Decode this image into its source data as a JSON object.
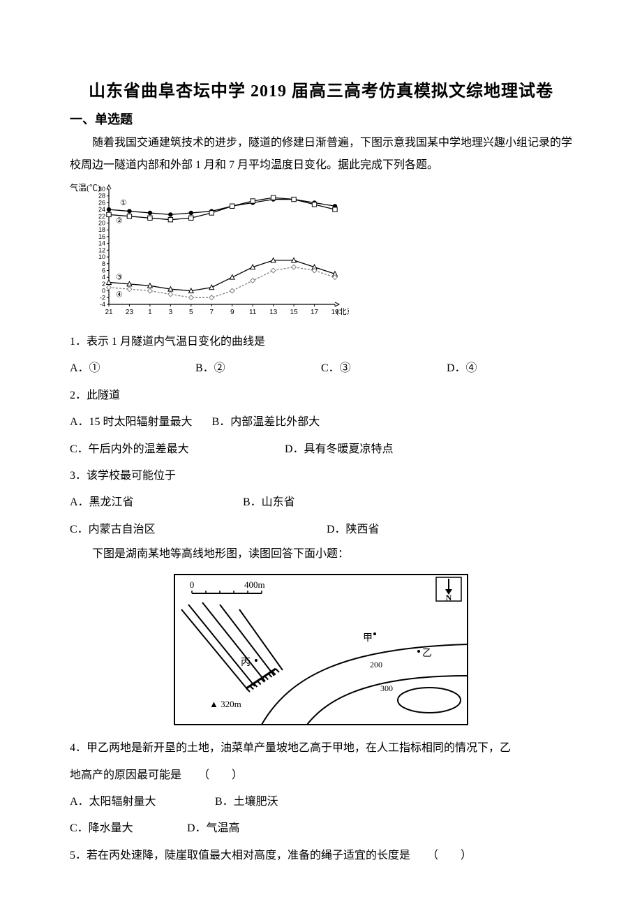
{
  "title": "山东省曲阜杏坛中学 2019 届高三高考仿真模拟文综地理试卷",
  "section1": "一、单选题",
  "intro1": "随着我国交通建筑技术的进步，隧道的修建日渐普遍，下图示意我国某中学地理兴趣小组记录的学校周边一隧道内部和外部 1 月和 7 月平均温度日变化。据此完成下列各题。",
  "chart1": {
    "type": "line",
    "y_label": "气温(℃)",
    "x_label": "(北京时间)",
    "x_ticks": [
      "21",
      "23",
      "1",
      "3",
      "5",
      "7",
      "9",
      "11",
      "13",
      "15",
      "17",
      "19"
    ],
    "y_ticks": [
      -4,
      -2,
      0,
      2,
      4,
      6,
      8,
      10,
      12,
      14,
      16,
      18,
      20,
      22,
      24,
      26,
      28,
      30
    ],
    "ylim": [
      -4,
      30
    ],
    "series_labels": [
      "①",
      "②",
      "③",
      "④"
    ],
    "series": {
      "s1": {
        "label": "①",
        "marker": "circle-filled",
        "color": "#000000",
        "values": [
          24,
          23.5,
          23,
          22.5,
          23,
          23.5,
          25,
          26,
          27,
          27,
          26,
          25
        ]
      },
      "s2": {
        "label": "②",
        "marker": "square-open",
        "color": "#000000",
        "values": [
          22.5,
          22,
          21.5,
          21,
          21.5,
          23,
          25,
          26.5,
          27.5,
          27,
          25.5,
          24
        ]
      },
      "s3": {
        "label": "③",
        "marker": "triangle-open",
        "color": "#000000",
        "values": [
          2.5,
          2,
          1.5,
          0.5,
          0,
          1,
          4,
          7,
          9,
          9,
          7,
          5
        ]
      },
      "s4": {
        "label": "④",
        "marker": "diamond-open",
        "color": "#808080",
        "values": [
          1,
          0.5,
          0,
          -1,
          -2,
          -2,
          0,
          3,
          6,
          7,
          6,
          4
        ]
      }
    },
    "line_width": 1.3,
    "axis_color": "#000000",
    "grid": false,
    "background_color": "#ffffff",
    "label_fontsize": 12
  },
  "q1": {
    "stem": "1．表示 1 月隧道内气温日变化的曲线是",
    "opts": {
      "A": "A．①",
      "B": "B．②",
      "C": "C．③",
      "D": "D．④"
    }
  },
  "q2": {
    "stem": "2．此隧道",
    "line1": {
      "A": "A．15 时太阳辐射量最大",
      "B": "B．内部温差比外部大"
    },
    "line2": {
      "C": "C．午后内外的温差最大",
      "D": "D．具有冬暖夏凉特点"
    }
  },
  "q3": {
    "stem": "3．该学校最可能位于",
    "line1": {
      "A": "A．黑龙江省",
      "B": "B．山东省"
    },
    "line2": {
      "C": "C．内蒙古自治区",
      "D": "D．陕西省"
    }
  },
  "intro2": "下图是湖南某地等高线地形图，读图回答下面小题：",
  "map": {
    "type": "contour-map",
    "scale_label": "400m",
    "scale_zero": "0",
    "north_label": "N",
    "points": {
      "jia": "甲",
      "yi": "乙",
      "bing": "丙"
    },
    "peak_label": "▲ 320m",
    "contours": [
      "200",
      "300"
    ],
    "border_color": "#000000",
    "line_color": "#000000",
    "background_color": "#ffffff",
    "label_fontsize": 14
  },
  "q4": {
    "stem_l1": "4．甲乙两地是新开垦的土地，油菜单产量坡地乙高于甲地，在人工指标相同的情况下，乙",
    "stem_l2": "地高产的原因最可能是　　（　　）",
    "line1": {
      "A": "A．太阳辐射量大",
      "B": "B．土壤肥沃"
    },
    "line2": {
      "C": "C．降水量大",
      "D": "D．气温高"
    }
  },
  "q5": {
    "stem": "5．若在丙处速降，陡崖取值最大相对高度，准备的绳子适宜的长度是　　（　　）"
  }
}
